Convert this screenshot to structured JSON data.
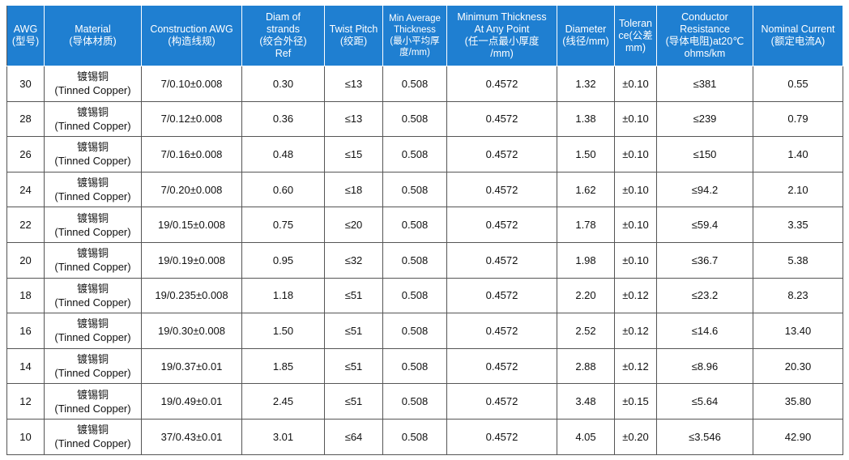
{
  "table": {
    "headers": [
      {
        "l1": "AWG",
        "l2": "(型号)"
      },
      {
        "l1": "Material",
        "l2": "(导体材质)"
      },
      {
        "l1": "Construction AWG",
        "l2": "(构造线规)"
      },
      {
        "l1": "Diam of",
        "l2": "strands",
        "l3": "(绞合外径)",
        "l4": "Ref"
      },
      {
        "l1": "Twist Pitch",
        "l2": "(绞距)"
      },
      {
        "l1": "Min Average",
        "l2": "Thickness",
        "l3": "(最小平均厚",
        "l4": "度/mm)"
      },
      {
        "l1": "Minimum Thickness",
        "l2": "At Any Point",
        "l3": "(任一点最小厚度",
        "l4": "/mm)"
      },
      {
        "l1": "Diameter",
        "l2": "(线径/mm)"
      },
      {
        "l1": "Toleran",
        "l2": "ce(公差",
        "l3": "mm)"
      },
      {
        "l1": "Conductor",
        "l2": "Resistance",
        "l3": "(导体电阻)at20℃",
        "l4": "ohms/km"
      },
      {
        "l1": "Nominal Current",
        "l2": "(额定电流A)"
      }
    ],
    "rows": [
      {
        "awg": "30",
        "mat_cn": "镀锡铜",
        "mat_en": "(Tinned Copper)",
        "construction": "7/0.10±0.008",
        "diam_strands": "0.30",
        "twist": "≤13",
        "min_avg": "0.508",
        "min_point": "0.4572",
        "diameter": "1.32",
        "tolerance": "±0.10",
        "resistance": "≤381",
        "current": "0.55"
      },
      {
        "awg": "28",
        "mat_cn": "镀锡铜",
        "mat_en": "(Tinned Copper)",
        "construction": "7/0.12±0.008",
        "diam_strands": "0.36",
        "twist": "≤13",
        "min_avg": "0.508",
        "min_point": "0.4572",
        "diameter": "1.38",
        "tolerance": "±0.10",
        "resistance": "≤239",
        "current": "0.79"
      },
      {
        "awg": "26",
        "mat_cn": "镀锡铜",
        "mat_en": "(Tinned Copper)",
        "construction": "7/0.16±0.008",
        "diam_strands": "0.48",
        "twist": "≤15",
        "min_avg": "0.508",
        "min_point": "0.4572",
        "diameter": "1.50",
        "tolerance": "±0.10",
        "resistance": "≤150",
        "current": "1.40"
      },
      {
        "awg": "24",
        "mat_cn": "镀锡铜",
        "mat_en": "(Tinned Copper)",
        "construction": "7/0.20±0.008",
        "diam_strands": "0.60",
        "twist": "≤18",
        "min_avg": "0.508",
        "min_point": "0.4572",
        "diameter": "1.62",
        "tolerance": "±0.10",
        "resistance": "≤94.2",
        "current": "2.10"
      },
      {
        "awg": "22",
        "mat_cn": "镀锡铜",
        "mat_en": "(Tinned Copper)",
        "construction": "19/0.15±0.008",
        "diam_strands": "0.75",
        "twist": "≤20",
        "min_avg": "0.508",
        "min_point": "0.4572",
        "diameter": "1.78",
        "tolerance": "±0.10",
        "resistance": "≤59.4",
        "current": "3.35"
      },
      {
        "awg": "20",
        "mat_cn": "镀锡铜",
        "mat_en": "(Tinned Copper)",
        "construction": "19/0.19±0.008",
        "diam_strands": "0.95",
        "twist": "≤32",
        "min_avg": "0.508",
        "min_point": "0.4572",
        "diameter": "1.98",
        "tolerance": "±0.10",
        "resistance": "≤36.7",
        "current": "5.38"
      },
      {
        "awg": "18",
        "mat_cn": "镀锡铜",
        "mat_en": "(Tinned Copper)",
        "construction": "19/0.235±0.008",
        "diam_strands": "1.18",
        "twist": "≤51",
        "min_avg": "0.508",
        "min_point": "0.4572",
        "diameter": "2.20",
        "tolerance": "±0.12",
        "resistance": "≤23.2",
        "current": "8.23"
      },
      {
        "awg": "16",
        "mat_cn": "镀锡铜",
        "mat_en": "(Tinned Copper)",
        "construction": "19/0.30±0.008",
        "diam_strands": "1.50",
        "twist": "≤51",
        "min_avg": "0.508",
        "min_point": "0.4572",
        "diameter": "2.52",
        "tolerance": "±0.12",
        "resistance": "≤14.6",
        "current": "13.40"
      },
      {
        "awg": "14",
        "mat_cn": "镀锡铜",
        "mat_en": "(Tinned Copper)",
        "construction": "19/0.37±0.01",
        "diam_strands": "1.85",
        "twist": "≤51",
        "min_avg": "0.508",
        "min_point": "0.4572",
        "diameter": "2.88",
        "tolerance": "±0.12",
        "resistance": "≤8.96",
        "current": "20.30"
      },
      {
        "awg": "12",
        "mat_cn": "镀锡铜",
        "mat_en": "(Tinned Copper)",
        "construction": "19/0.49±0.01",
        "diam_strands": "2.45",
        "twist": "≤51",
        "min_avg": "0.508",
        "min_point": "0.4572",
        "diameter": "3.48",
        "tolerance": "±0.15",
        "resistance": "≤5.64",
        "current": "35.80"
      },
      {
        "awg": "10",
        "mat_cn": "镀锡铜",
        "mat_en": "(Tinned Copper)",
        "construction": "37/0.43±0.01",
        "diam_strands": "3.01",
        "twist": "≤64",
        "min_avg": "0.508",
        "min_point": "0.4572",
        "diameter": "4.05",
        "tolerance": "±0.20",
        "resistance": "≤3.546",
        "current": "42.90"
      }
    ]
  },
  "colors": {
    "header_bg": "#1f7fd1",
    "header_text": "#ffffff",
    "border": "#555555"
  }
}
